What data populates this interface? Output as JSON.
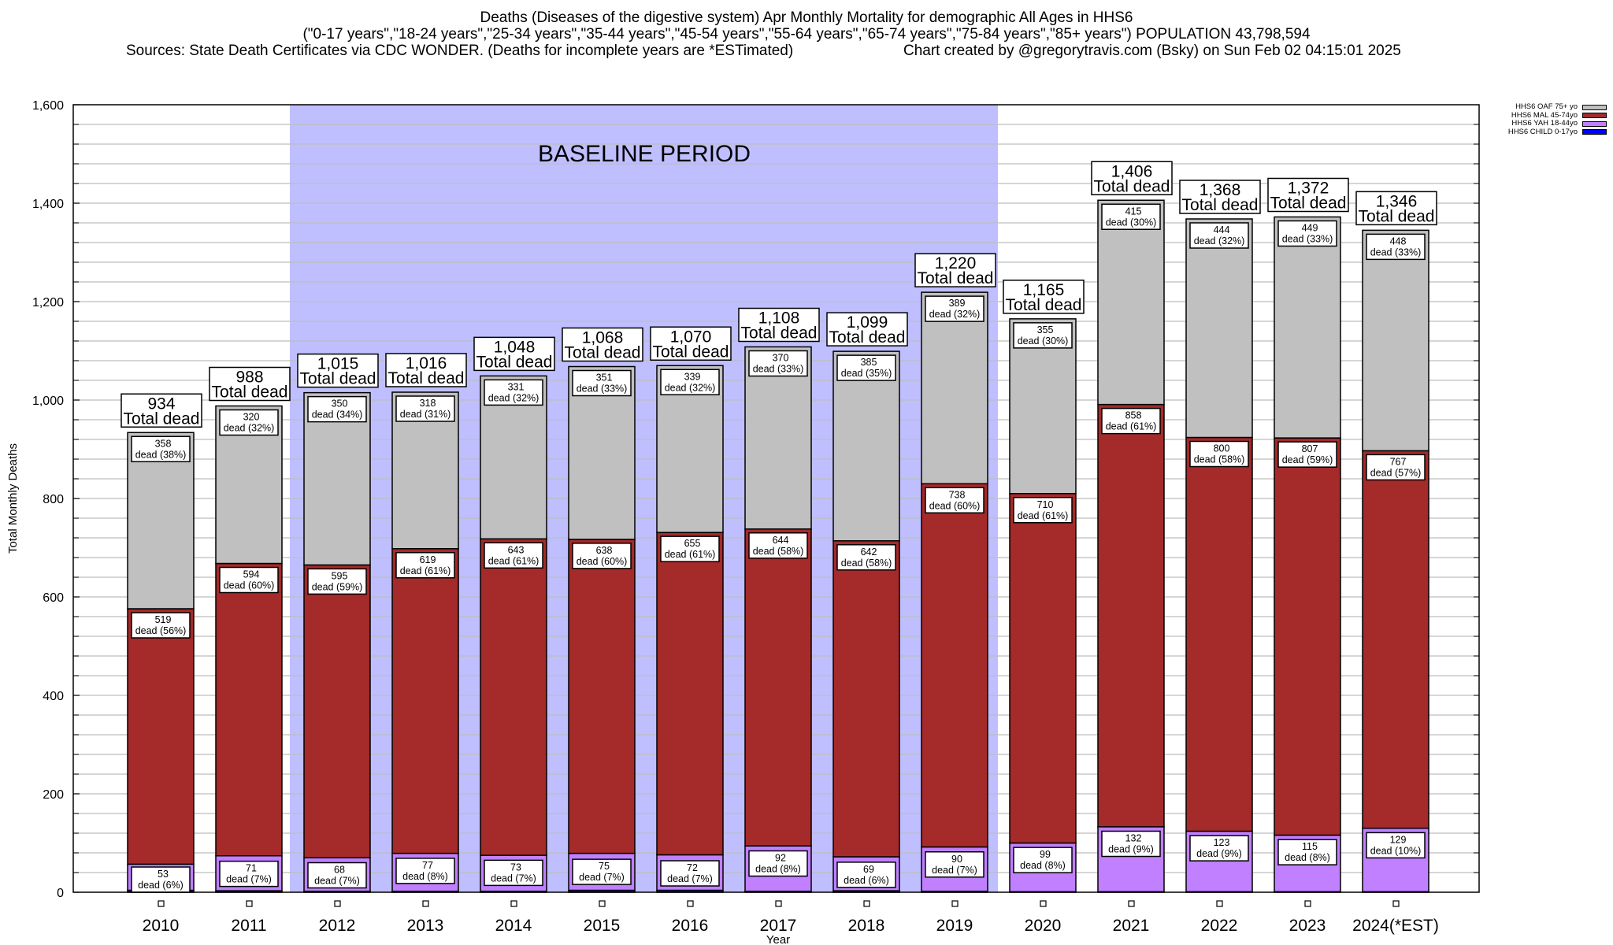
{
  "header": {
    "title": "Deaths (Diseases of the digestive system) Apr Monthly Mortality for demographic All Ages in HHS6",
    "subtitle": "(\"0-17 years\",\"18-24 years\",\"25-34 years\",\"35-44 years\",\"45-54 years\",\"55-64 years\",\"65-74 years\",\"75-84 years\",\"85+ years\") POPULATION 43,798,594",
    "sources": "Sources: State Death Certificates via CDC WONDER. (Deaths for incomplete years are *ESTimated)",
    "credit": "Chart created by @gregorytravis.com (Bsky) on Sun Feb 02 04:15:01 2025"
  },
  "chart_data": {
    "type": "bar",
    "stacked": true,
    "title": "Deaths (Diseases of the digestive system) Apr Monthly Mortality for demographic All Ages in HHS6",
    "xlabel": "Year",
    "ylabel": "Total Monthly Deaths",
    "ylim": [
      0,
      1600
    ],
    "yticks": [
      0,
      200,
      400,
      600,
      800,
      1000,
      1200,
      1400,
      1600
    ],
    "ytick_labels": [
      "0",
      "200",
      "400",
      "600",
      "800",
      "1,000",
      "1,200",
      "1,400",
      "1,600"
    ],
    "grid": true,
    "legend_position": "top-right",
    "categories": [
      "2010",
      "2011",
      "2012",
      "2013",
      "2014",
      "2015",
      "2016",
      "2017",
      "2018",
      "2019",
      "2020",
      "2021",
      "2022",
      "2023",
      "2024(*EST)"
    ],
    "annotation": {
      "text": "BASELINE PERIOD",
      "from": "2012",
      "to": "2019",
      "color": "#bfbfff"
    },
    "total_label_suffix": "Total dead",
    "segment_label_word": "dead",
    "series": [
      {
        "name": "HHS6 CHILD 0-17yo",
        "color": "#0000ff",
        "labeled": false,
        "values": [
          4,
          3,
          2,
          2,
          2,
          4,
          4,
          2,
          3,
          2,
          1,
          1,
          1,
          1,
          1
        ]
      },
      {
        "name": "HHS6 YAH 18-44yo",
        "color": "#c080ff",
        "labeled": true,
        "values": [
          53,
          71,
          68,
          77,
          73,
          75,
          72,
          92,
          69,
          90,
          99,
          132,
          123,
          115,
          129
        ],
        "percents": [
          "6%",
          "7%",
          "7%",
          "8%",
          "7%",
          "7%",
          "7%",
          "8%",
          "6%",
          "7%",
          "8%",
          "9%",
          "9%",
          "8%",
          "10%"
        ]
      },
      {
        "name": "HHS6 MAL 45-74yo",
        "color": "#a52a2a",
        "labeled": true,
        "values": [
          519,
          594,
          595,
          619,
          643,
          638,
          655,
          644,
          642,
          738,
          710,
          858,
          800,
          807,
          767
        ],
        "percents": [
          "56%",
          "60%",
          "59%",
          "61%",
          "61%",
          "60%",
          "61%",
          "58%",
          "58%",
          "60%",
          "61%",
          "61%",
          "58%",
          "59%",
          "57%"
        ]
      },
      {
        "name": "HHS6 OAF 75+ yo",
        "color": "#c0c0c0",
        "labeled": true,
        "values": [
          358,
          320,
          350,
          318,
          331,
          351,
          339,
          370,
          385,
          389,
          355,
          415,
          444,
          449,
          448
        ],
        "percents": [
          "38%",
          "32%",
          "34%",
          "31%",
          "32%",
          "33%",
          "32%",
          "33%",
          "35%",
          "32%",
          "30%",
          "30%",
          "32%",
          "33%",
          "33%"
        ]
      }
    ],
    "totals": [
      "934",
      "988",
      "1,015",
      "1,016",
      "1,048",
      "1,068",
      "1,070",
      "1,108",
      "1,099",
      "1,220",
      "1,165",
      "1,406",
      "1,368",
      "1,372",
      "1,346"
    ]
  }
}
